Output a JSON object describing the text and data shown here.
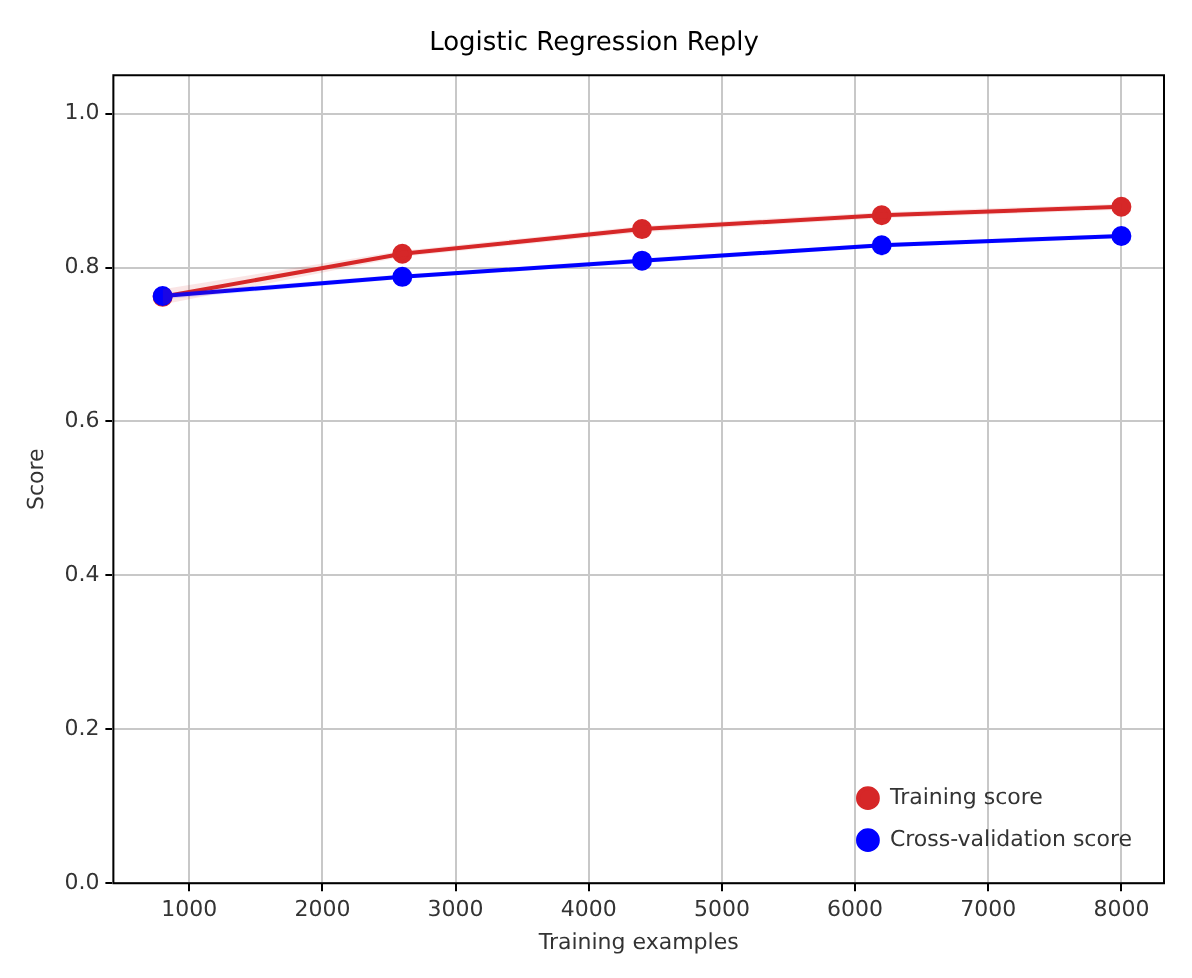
{
  "chart_data": {
    "type": "line",
    "title": "Logistic Regression Reply",
    "xlabel": "Training examples",
    "ylabel": "Score",
    "x": [
      800,
      2600,
      4400,
      6200,
      8000
    ],
    "series": [
      {
        "name": "Training score",
        "color": "#d62728",
        "values": [
          0.762,
          0.818,
          0.85,
          0.868,
          0.879
        ],
        "lower": [
          0.752,
          0.814,
          0.846,
          0.864,
          0.875
        ],
        "upper": [
          0.772,
          0.822,
          0.854,
          0.872,
          0.883
        ]
      },
      {
        "name": "Cross-validation score",
        "color": "#0000ff",
        "values": [
          0.763,
          0.788,
          0.809,
          0.829,
          0.841
        ],
        "lower": [
          0.759,
          0.785,
          0.806,
          0.826,
          0.838
        ],
        "upper": [
          0.767,
          0.791,
          0.812,
          0.832,
          0.844
        ]
      }
    ],
    "xlim": [
      430,
      8320
    ],
    "xticks": [
      1000,
      2000,
      3000,
      4000,
      5000,
      6000,
      7000,
      8000
    ],
    "ylim": [
      0,
      1.05
    ],
    "yticks": [
      {
        "value": 0,
        "label": "0.0"
      },
      0.2,
      0.4,
      0.6,
      0.8,
      {
        "value": 1,
        "label": "1.0"
      }
    ],
    "grid": true,
    "legend": "bottom right",
    "marker": "circle",
    "line_style": "solid"
  }
}
